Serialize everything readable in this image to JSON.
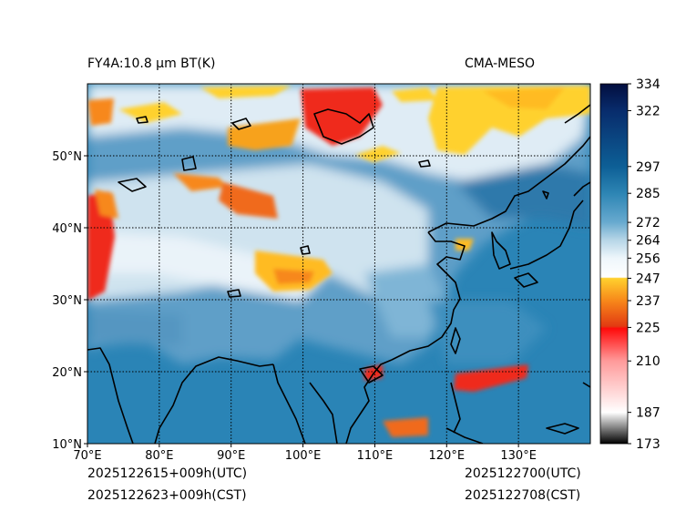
{
  "title_left": "FY4A:10.8 µm BT(K)",
  "title_right": "CMA-MESO",
  "footer": {
    "init_utc": "2025122615+009h(UTC)",
    "init_cst": "2025122623+009h(CST)",
    "valid_utc": "2025122700(UTC)",
    "valid_cst": "2025122708(CST)"
  },
  "map": {
    "lon_range": [
      70,
      140
    ],
    "lat_range": [
      10,
      60
    ],
    "lon_ticks": [
      70,
      80,
      90,
      100,
      110,
      120,
      130
    ],
    "lat_ticks": [
      10,
      20,
      30,
      40,
      50
    ],
    "lon_labels": [
      "70°E",
      "80°E",
      "90°E",
      "100°E",
      "110°E",
      "120°E",
      "130°E"
    ],
    "lat_labels": [
      "10°N",
      "20°N",
      "30°N",
      "40°N",
      "50°N"
    ],
    "gridlines": "dotted"
  },
  "colorbar": {
    "label_values": [
      "334",
      "322",
      "297",
      "285",
      "272",
      "264",
      "256",
      "247",
      "237",
      "225",
      "210",
      "187",
      "173"
    ],
    "range": [
      173,
      334
    ],
    "stops": [
      {
        "v": 173,
        "c": "#000000"
      },
      {
        "v": 187,
        "c": "#ffffff"
      },
      {
        "v": 210,
        "c": "#ff9a9a"
      },
      {
        "v": 224.5,
        "c": "#ff0a0a"
      },
      {
        "v": 225.5,
        "c": "#e23a12"
      },
      {
        "v": 237,
        "c": "#f7881a"
      },
      {
        "v": 247,
        "c": "#ffd12e"
      },
      {
        "v": 247.5,
        "c": "#ffffff"
      },
      {
        "v": 256,
        "c": "#eef6fb"
      },
      {
        "v": 264,
        "c": "#b7d6e7"
      },
      {
        "v": 272,
        "c": "#68aacf"
      },
      {
        "v": 285,
        "c": "#2d85b4"
      },
      {
        "v": 297,
        "c": "#0d5f96"
      },
      {
        "v": 322,
        "c": "#082c6c"
      },
      {
        "v": 334,
        "c": "#030e3f"
      }
    ]
  },
  "colors": {
    "ocean": "#2a84b6",
    "land_warm": "#5a9fc9",
    "cloud_light": "#d5e8f3",
    "cold_cloud_yellow": "#ffd12e",
    "cold_cloud_orange": "#f7881a",
    "coldest_red": "#ef2a1e"
  }
}
